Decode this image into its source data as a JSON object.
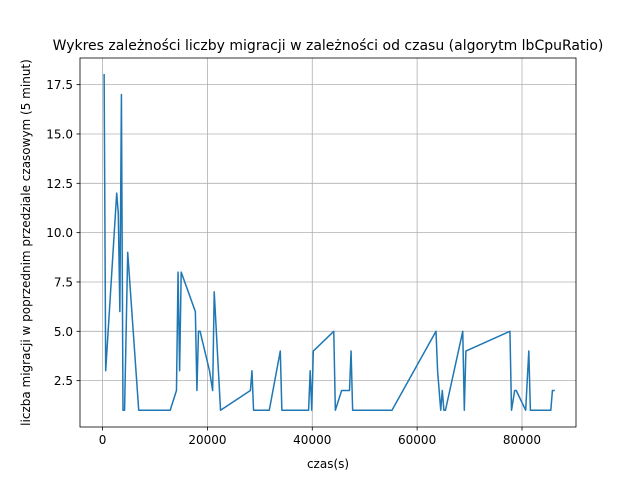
{
  "chart_data": {
    "type": "line",
    "title": "Wykres zależności liczby migracji w zależności od czasu (algorytm lbCpuRatio)",
    "xlabel": "czas(s)",
    "ylabel": "liczba migracji w poprzednim  przedziale czasowym (5 minut)",
    "xlim": [
      -4300,
      90300
    ],
    "ylim": [
      0.15,
      18.85
    ],
    "xticks": [
      0,
      20000,
      40000,
      60000,
      80000
    ],
    "xtick_labels": [
      "0",
      "20000",
      "40000",
      "60000",
      "80000"
    ],
    "yticks": [
      2.5,
      5.0,
      7.5,
      10.0,
      12.5,
      15.0,
      17.5
    ],
    "ytick_labels": [
      "2.5",
      "5.0",
      "7.5",
      "10.0",
      "12.5",
      "15.0",
      "17.5"
    ],
    "grid": true,
    "line_color": "#1f77b4",
    "series": [
      {
        "x": [
          300,
          600,
          2700,
          3000,
          3300,
          3600,
          3900,
          4200,
          4800,
          6900,
          12900,
          14100,
          14400,
          14700,
          15000,
          17700,
          18000,
          18300,
          18600,
          20400,
          21000,
          21300,
          22500,
          28200,
          28500,
          28800,
          31800,
          33900,
          34200,
          39300,
          39600,
          39900,
          40200,
          44100,
          44400,
          45600,
          47100,
          47400,
          47700,
          55200,
          63600,
          63900,
          64500,
          64800,
          65100,
          65400,
          68700,
          69000,
          69300,
          77700,
          78000,
          78600,
          78900,
          80700,
          81300,
          81600,
          82200,
          85500,
          85800,
          86100
        ],
        "y": [
          18,
          3,
          12,
          11,
          6,
          17,
          1,
          1,
          9,
          1,
          1,
          2,
          8,
          3,
          8,
          6,
          2,
          5,
          5,
          3,
          2,
          7,
          1,
          2,
          3,
          1,
          1,
          4,
          1,
          1,
          3,
          1,
          4,
          5,
          1,
          2,
          2,
          4,
          1,
          1,
          5,
          3,
          1,
          2,
          1,
          1,
          5,
          1,
          4,
          5,
          1,
          2,
          2,
          1,
          4,
          1,
          1,
          1,
          2,
          2
        ]
      }
    ]
  }
}
